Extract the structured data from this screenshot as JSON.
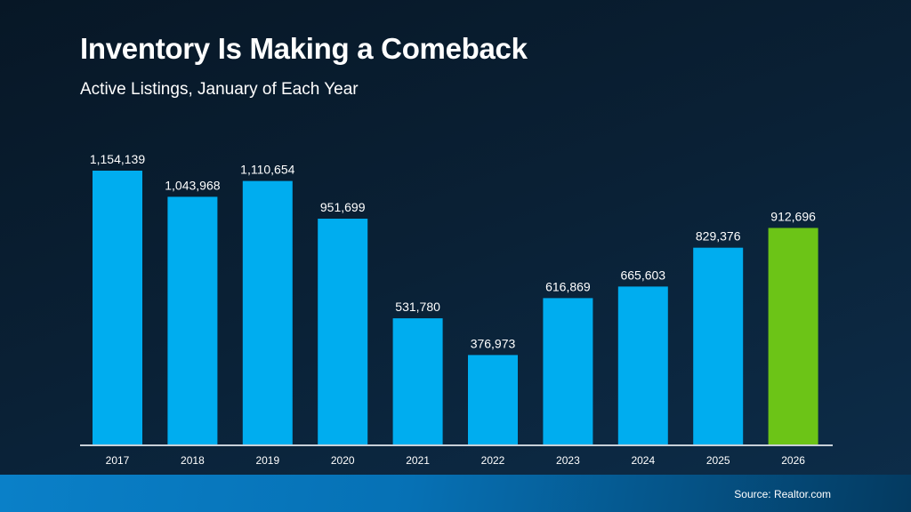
{
  "chart_data": {
    "type": "bar",
    "title": "Inventory Is Making a Comeback",
    "subtitle": "Active Listings, January of Each Year",
    "categories": [
      "2017",
      "2018",
      "2019",
      "2020",
      "2021",
      "2022",
      "2023",
      "2024",
      "2025",
      "2026"
    ],
    "values": [
      1154139,
      1043968,
      1110654,
      951699,
      531780,
      376973,
      616869,
      665603,
      829376,
      912696
    ],
    "data_labels": [
      "1,154,139",
      "1,043,968",
      "1,110,654",
      "951,699",
      "531,780",
      "376,973",
      "616,869",
      "665,603",
      "829,376",
      "912,696"
    ],
    "ylim": [
      0,
      1154139
    ],
    "grid": false,
    "colors": {
      "bar": "#00adef",
      "highlight": "#6cc417",
      "axis": "#c8d0d8"
    },
    "highlight_category": "2026",
    "source": "Source: Realtor.com"
  }
}
